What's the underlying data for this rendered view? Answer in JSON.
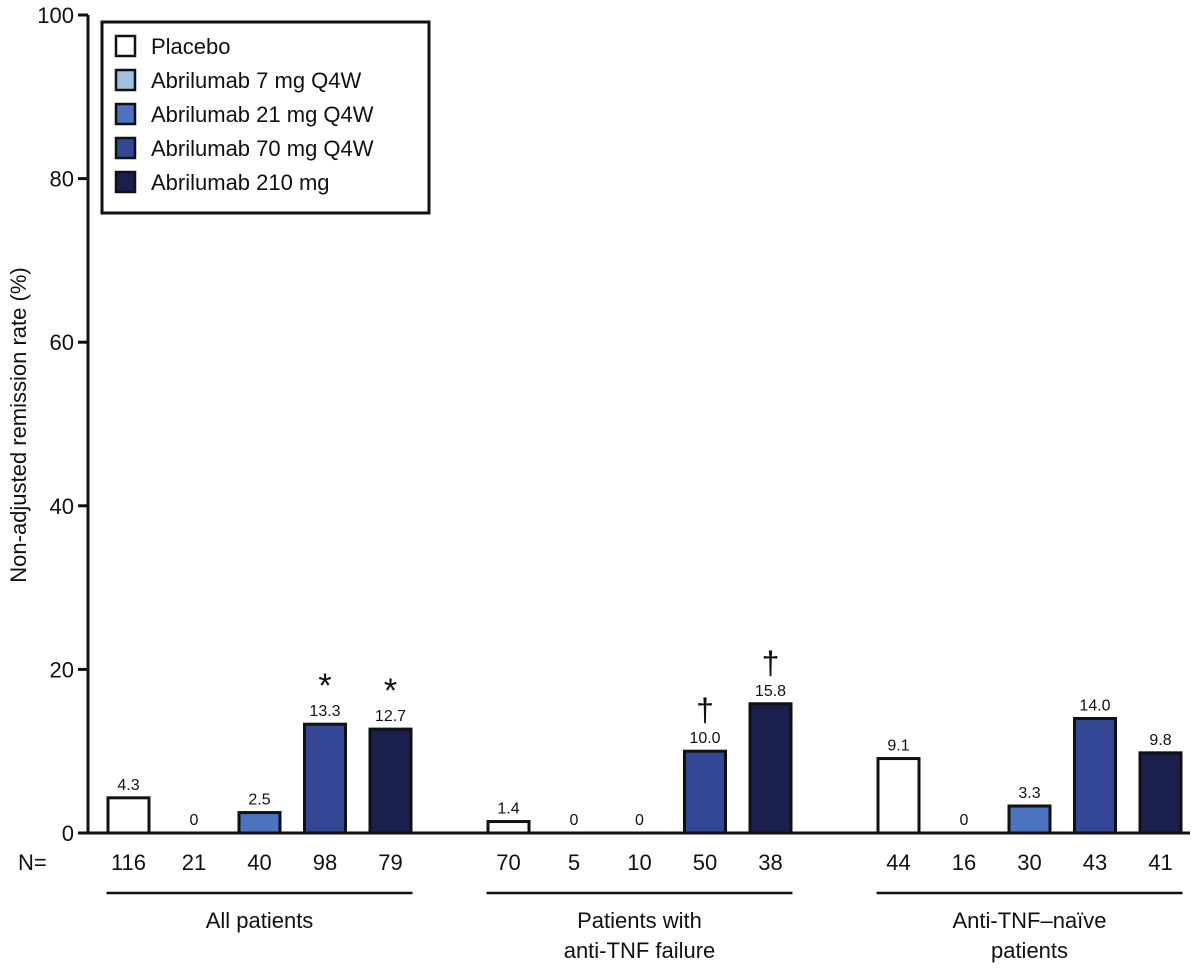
{
  "chart_data": {
    "type": "bar",
    "ylabel": "Non-adjusted remission rate  (%)",
    "ylim": [
      0,
      100
    ],
    "yticks": [
      0,
      20,
      40,
      60,
      80,
      100
    ],
    "n_prefix": "N=",
    "legend_position": "top-left",
    "series": [
      {
        "name": "Placebo",
        "color": "#ffffff"
      },
      {
        "name": "Abrilumab 7 mg Q4W",
        "color": "#9fc0e0"
      },
      {
        "name": "Abrilumab 21 mg Q4W",
        "color": "#4b74c0"
      },
      {
        "name": "Abrilumab 70 mg Q4W",
        "color": "#344794"
      },
      {
        "name": "Abrilumab 210 mg",
        "color": "#1a1f4e"
      }
    ],
    "groups": [
      {
        "label": [
          "All patients"
        ],
        "values": [
          4.3,
          0,
          2.5,
          13.3,
          12.7
        ],
        "value_labels": [
          "4.3",
          "0",
          "2.5",
          "13.3",
          "12.7"
        ],
        "n": [
          "116",
          "21",
          "40",
          "98",
          "79"
        ],
        "markers": [
          "",
          "",
          "",
          "*",
          "*"
        ]
      },
      {
        "label": [
          "Patients with",
          "anti-TNF failure"
        ],
        "values": [
          1.4,
          0,
          0,
          10.0,
          15.8
        ],
        "value_labels": [
          "1.4",
          "0",
          "0",
          "10.0",
          "15.8"
        ],
        "n": [
          "70",
          "5",
          "10",
          "50",
          "38"
        ],
        "markers": [
          "",
          "",
          "",
          "†",
          "†"
        ]
      },
      {
        "label": [
          "Anti-TNF–naïve",
          "patients"
        ],
        "values": [
          9.1,
          0,
          3.3,
          14.0,
          9.8
        ],
        "value_labels": [
          "9.1",
          "0",
          "3.3",
          "14.0",
          "9.8"
        ],
        "n": [
          "44",
          "16",
          "30",
          "43",
          "41"
        ],
        "markers": [
          "",
          "",
          "",
          "",
          ""
        ]
      }
    ]
  }
}
